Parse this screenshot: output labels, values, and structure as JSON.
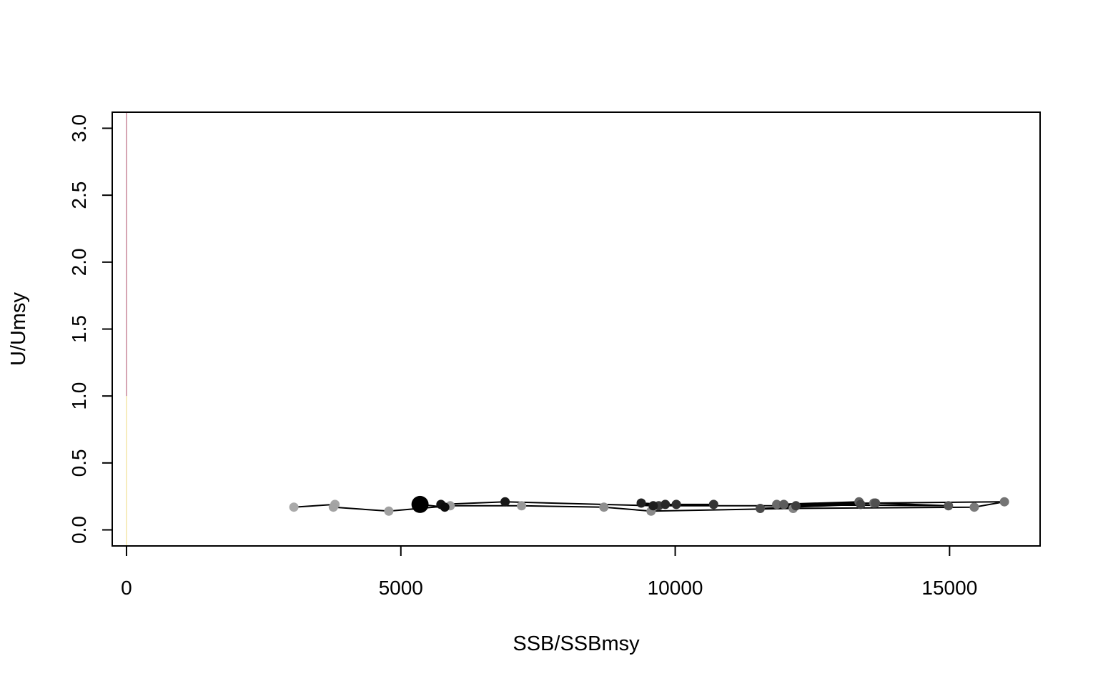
{
  "chart_data": {
    "type": "scatter",
    "xlabel": "SSB/SSBmsy",
    "ylabel": "U/Umsy",
    "xlim": [
      -260,
      16650
    ],
    "ylim": [
      -0.12,
      3.12
    ],
    "x_ticks": [
      {
        "value": 0,
        "label": "0"
      },
      {
        "value": 5000,
        "label": "5000"
      },
      {
        "value": 10000,
        "label": "10000"
      },
      {
        "value": 15000,
        "label": "15000"
      }
    ],
    "y_ticks": [
      {
        "value": 0.0,
        "label": "0.0"
      },
      {
        "value": 0.5,
        "label": "0.5"
      },
      {
        "value": 1.0,
        "label": "1.0"
      },
      {
        "value": 1.5,
        "label": "1.5"
      },
      {
        "value": 2.0,
        "label": "2.0"
      },
      {
        "value": 2.5,
        "label": "2.5"
      },
      {
        "value": 3.0,
        "label": "3.0"
      }
    ],
    "grid": false,
    "legend": "none",
    "reference_lines": [
      {
        "orientation": "vertical",
        "x": 0,
        "y_from": -0.12,
        "y_to": 1.0,
        "color": "#f5e6a8"
      },
      {
        "orientation": "vertical",
        "x": 0,
        "y_from": 1.0,
        "y_to": 3.12,
        "color": "#c9879a"
      }
    ],
    "series": [
      {
        "line_color": "#000000",
        "points": [
          {
            "x": 3050,
            "y": 0.17,
            "color": "#aaaaaa"
          },
          {
            "x": 3800,
            "y": 0.19,
            "color": "#a6a6a6"
          },
          {
            "x": 3770,
            "y": 0.17,
            "color": "#a3a3a3"
          },
          {
            "x": 4780,
            "y": 0.14,
            "color": "#a0a0a0"
          },
          {
            "x": 5900,
            "y": 0.18,
            "color": "#9c9c9c"
          },
          {
            "x": 7200,
            "y": 0.18,
            "color": "#989898"
          },
          {
            "x": 8700,
            "y": 0.17,
            "color": "#8e8e8e"
          },
          {
            "x": 9560,
            "y": 0.14,
            "color": "#8a8a8a"
          },
          {
            "x": 12150,
            "y": 0.16,
            "color": "#848484"
          },
          {
            "x": 15450,
            "y": 0.17,
            "color": "#7a7a7a"
          },
          {
            "x": 16000,
            "y": 0.21,
            "color": "#747474"
          },
          {
            "x": 13620,
            "y": 0.2,
            "color": "#6e6e6e"
          },
          {
            "x": 11850,
            "y": 0.19,
            "color": "#6a6a6a"
          },
          {
            "x": 13350,
            "y": 0.21,
            "color": "#626262"
          },
          {
            "x": 11980,
            "y": 0.19,
            "color": "#5c5c5c"
          },
          {
            "x": 14980,
            "y": 0.18,
            "color": "#585858"
          },
          {
            "x": 13650,
            "y": 0.2,
            "color": "#505050"
          },
          {
            "x": 11550,
            "y": 0.16,
            "color": "#4a4a4a"
          },
          {
            "x": 13380,
            "y": 0.19,
            "color": "#444444"
          },
          {
            "x": 12200,
            "y": 0.18,
            "color": "#3e3e3e"
          },
          {
            "x": 9700,
            "y": 0.18,
            "color": "#3a3a3a"
          },
          {
            "x": 10700,
            "y": 0.19,
            "color": "#343434"
          },
          {
            "x": 10020,
            "y": 0.19,
            "color": "#2e2e2e"
          },
          {
            "x": 9820,
            "y": 0.19,
            "color": "#282828"
          },
          {
            "x": 9380,
            "y": 0.2,
            "color": "#222222"
          },
          {
            "x": 9600,
            "y": 0.18,
            "color": "#1e1e1e"
          },
          {
            "x": 6900,
            "y": 0.21,
            "color": "#181818"
          },
          {
            "x": 5730,
            "y": 0.19,
            "color": "#121212"
          },
          {
            "x": 5800,
            "y": 0.17,
            "color": "#0c0c0c"
          },
          {
            "x": 5350,
            "y": 0.19,
            "color": "#000000",
            "highlight": true
          }
        ]
      }
    ]
  }
}
